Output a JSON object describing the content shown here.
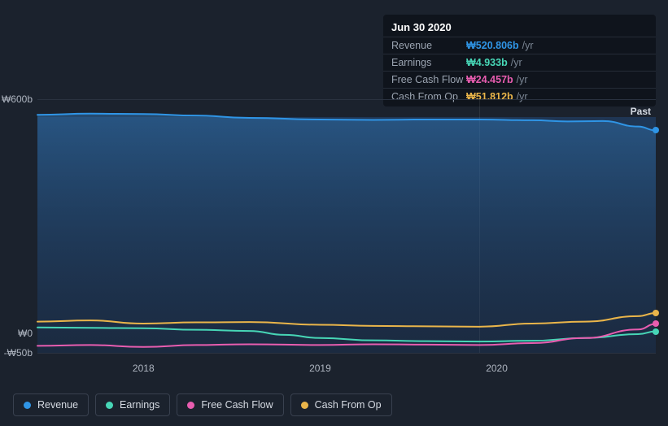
{
  "tooltip": {
    "date": "Jun 30 2020",
    "rows": [
      {
        "label": "Revenue",
        "value": "₩520.806b",
        "unit": "/yr",
        "color": "#2f95e6"
      },
      {
        "label": "Earnings",
        "value": "₩4.933b",
        "unit": "/yr",
        "color": "#47d6b6"
      },
      {
        "label": "Free Cash Flow",
        "value": "₩24.457b",
        "unit": "/yr",
        "color": "#e85db0"
      },
      {
        "label": "Cash From Op",
        "value": "₩51.812b",
        "unit": "/yr",
        "color": "#eab54a"
      }
    ]
  },
  "chart": {
    "type": "area-line",
    "past_label": "Past",
    "background_top": "#1f3654",
    "background_bottom": "#1b2a40",
    "grid_color": "#2a3240",
    "y": {
      "min": -50,
      "max": 600,
      "ticks": [
        {
          "v": 600,
          "label": "₩600b"
        },
        {
          "v": 0,
          "label": "₩0"
        },
        {
          "v": -50,
          "label": "-₩50b"
        }
      ]
    },
    "x": {
      "min": 2017.4,
      "max": 2020.9,
      "ticks": [
        {
          "v": 2018,
          "label": "2018"
        },
        {
          "v": 2019,
          "label": "2019"
        },
        {
          "v": 2020,
          "label": "2020"
        }
      ],
      "marker_x": 2019.9
    },
    "series": [
      {
        "name": "Revenue",
        "color": "#2f95e6",
        "width": 2,
        "area": true,
        "points": [
          [
            2017.4,
            560
          ],
          [
            2017.7,
            563
          ],
          [
            2018.0,
            562
          ],
          [
            2018.3,
            558
          ],
          [
            2018.6,
            552
          ],
          [
            2019.0,
            548
          ],
          [
            2019.3,
            547
          ],
          [
            2019.6,
            548
          ],
          [
            2019.9,
            548
          ],
          [
            2020.2,
            546
          ],
          [
            2020.4,
            543
          ],
          [
            2020.6,
            544
          ],
          [
            2020.8,
            530
          ],
          [
            2020.9,
            520
          ]
        ]
      },
      {
        "name": "Cash From Op",
        "color": "#eab54a",
        "width": 2,
        "points": [
          [
            2017.4,
            30
          ],
          [
            2017.7,
            33
          ],
          [
            2018.0,
            25
          ],
          [
            2018.3,
            28
          ],
          [
            2018.6,
            29
          ],
          [
            2019.0,
            22
          ],
          [
            2019.3,
            19
          ],
          [
            2019.6,
            18
          ],
          [
            2019.9,
            17
          ],
          [
            2020.2,
            25
          ],
          [
            2020.5,
            30
          ],
          [
            2020.8,
            44
          ],
          [
            2020.9,
            52
          ]
        ]
      },
      {
        "name": "Earnings",
        "color": "#47d6b6",
        "width": 2,
        "points": [
          [
            2017.4,
            15
          ],
          [
            2017.7,
            14
          ],
          [
            2018.0,
            13
          ],
          [
            2018.3,
            9
          ],
          [
            2018.6,
            6
          ],
          [
            2018.8,
            -4
          ],
          [
            2019.0,
            -12
          ],
          [
            2019.3,
            -18
          ],
          [
            2019.6,
            -20
          ],
          [
            2019.9,
            -21
          ],
          [
            2020.2,
            -19
          ],
          [
            2020.5,
            -12
          ],
          [
            2020.8,
            -2
          ],
          [
            2020.9,
            5
          ]
        ]
      },
      {
        "name": "Free Cash Flow",
        "color": "#e85db0",
        "width": 2,
        "points": [
          [
            2017.4,
            -32
          ],
          [
            2017.7,
            -30
          ],
          [
            2018.0,
            -35
          ],
          [
            2018.3,
            -30
          ],
          [
            2018.6,
            -28
          ],
          [
            2019.0,
            -30
          ],
          [
            2019.3,
            -28
          ],
          [
            2019.6,
            -29
          ],
          [
            2019.9,
            -30
          ],
          [
            2020.2,
            -25
          ],
          [
            2020.5,
            -12
          ],
          [
            2020.8,
            10
          ],
          [
            2020.9,
            24
          ]
        ]
      }
    ]
  },
  "legend": [
    {
      "label": "Revenue",
      "color": "#2f95e6"
    },
    {
      "label": "Earnings",
      "color": "#47d6b6"
    },
    {
      "label": "Free Cash Flow",
      "color": "#e85db0"
    },
    {
      "label": "Cash From Op",
      "color": "#eab54a"
    }
  ]
}
